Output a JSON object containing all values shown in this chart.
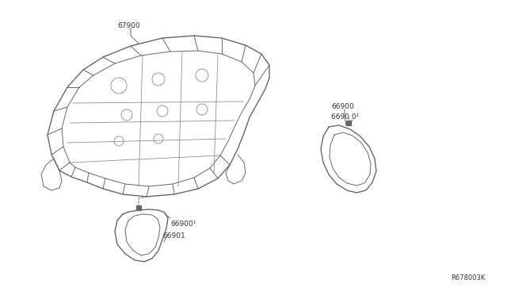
{
  "bg_color": "#ffffff",
  "ref_code": "R678003K",
  "line_color": "#666666",
  "text_color": "#333333",
  "lw_main": 1.0,
  "lw_detail": 0.7,
  "lw_leader": 0.7,
  "font_size": 6.5
}
